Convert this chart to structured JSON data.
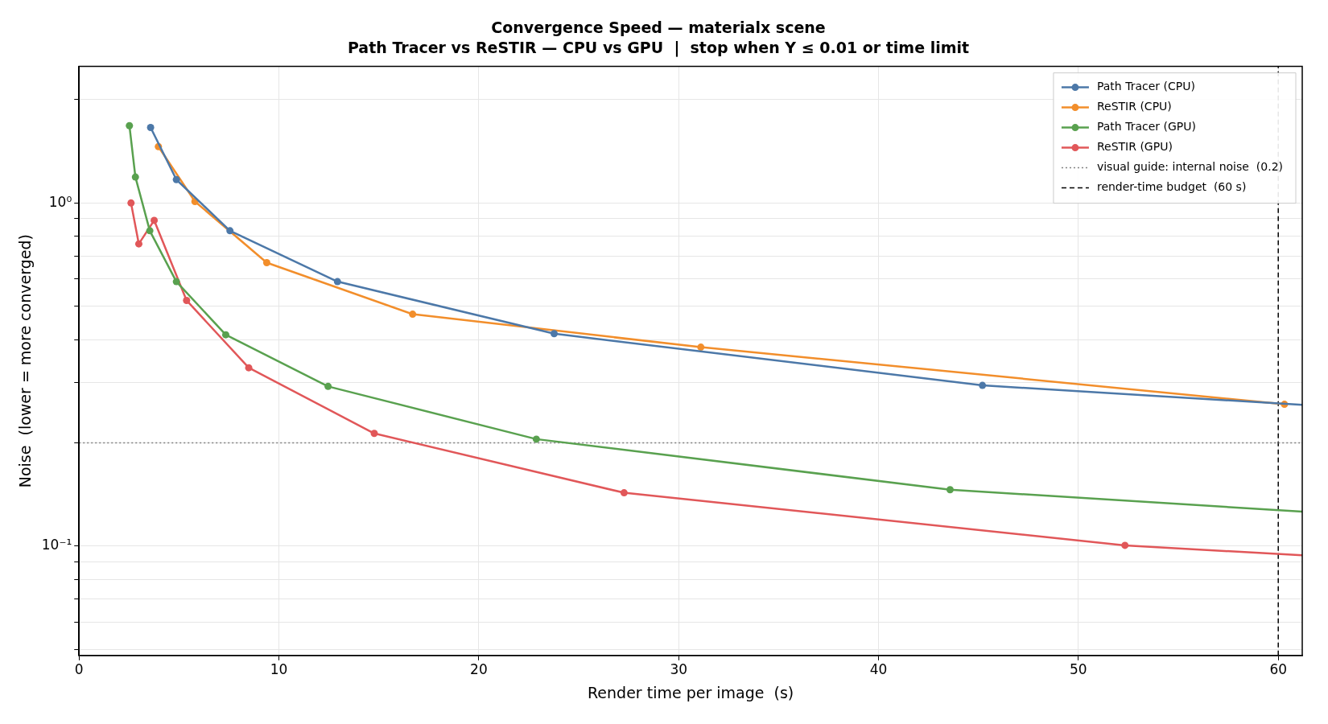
{
  "chart_data": {
    "type": "line",
    "title": "Convergence Speed — materialx scene",
    "subtitle": "Path Tracer vs ReSTIR — CPU vs GPU  |  stop when Y ≤ 0.01 or time limit",
    "xlabel": "Render time per image  (s)",
    "ylabel": "Noise  (lower = more converged)",
    "log": "y",
    "grid": true,
    "legend": "top right",
    "marker": "circle",
    "line_style": "solid",
    "xlim": [
      0,
      61.2
    ],
    "xticks": [
      0,
      10,
      20,
      30,
      40,
      50,
      60
    ],
    "ylim": [
      0.048,
      2.5
    ],
    "yticks": [
      {
        "value": 0.05,
        "label": null
      },
      {
        "value": 0.06,
        "label": null
      },
      {
        "value": 0.07,
        "label": null
      },
      {
        "value": 0.08,
        "label": null
      },
      {
        "value": 0.09,
        "label": null
      },
      {
        "value": 0.1,
        "label": "10⁻¹"
      },
      {
        "value": 0.2,
        "label": null
      },
      {
        "value": 0.3,
        "label": null
      },
      {
        "value": 0.4,
        "label": null
      },
      {
        "value": 0.5,
        "label": null
      },
      {
        "value": 0.6,
        "label": null
      },
      {
        "value": 0.7,
        "label": null
      },
      {
        "value": 0.8,
        "label": null
      },
      {
        "value": 0.9,
        "label": null
      },
      {
        "value": 1,
        "label": "10⁰"
      },
      {
        "value": 2,
        "label": null
      }
    ],
    "series": [
      {
        "name": "Path Tracer (CPU)",
        "color": "#4c78a8",
        "x": [
          3.58,
          4.87,
          7.55,
          12.93,
          23.77,
          45.2,
          61.2
        ],
        "values": [
          1.66,
          1.17,
          0.83,
          0.59,
          0.416,
          0.294,
          0.258
        ]
      },
      {
        "name": "ReSTIR (CPU)",
        "color": "#f28e2b",
        "x": [
          3.97,
          5.8,
          9.39,
          16.69,
          31.11,
          60.31
        ],
        "values": [
          1.46,
          1.01,
          0.67,
          0.474,
          0.38,
          0.259
        ]
      },
      {
        "name": "Path Tracer (GPU)",
        "color": "#59a14f",
        "x": [
          2.52,
          2.82,
          3.54,
          4.87,
          7.34,
          12.46,
          22.88,
          43.58,
          61.2
        ],
        "values": [
          1.68,
          1.19,
          0.83,
          0.59,
          0.413,
          0.292,
          0.205,
          0.146,
          0.126
        ]
      },
      {
        "name": "ReSTIR (GPU)",
        "color": "#e15759",
        "x": [
          2.6,
          2.99,
          3.76,
          5.38,
          8.49,
          14.77,
          27.27,
          52.33,
          61.2
        ],
        "values": [
          1.0,
          0.76,
          0.89,
          0.52,
          0.331,
          0.213,
          0.143,
          0.1005,
          0.094
        ]
      }
    ],
    "ref_lines": [
      {
        "axis": "y",
        "value": 0.2,
        "label": "visual guide: internal noise  (0.2)",
        "color": "#808080",
        "line_style": "dotted"
      },
      {
        "axis": "x",
        "value": 60,
        "label": "render-time budget  (60 s)",
        "color": "#000000",
        "line_style": "dashed"
      }
    ]
  }
}
